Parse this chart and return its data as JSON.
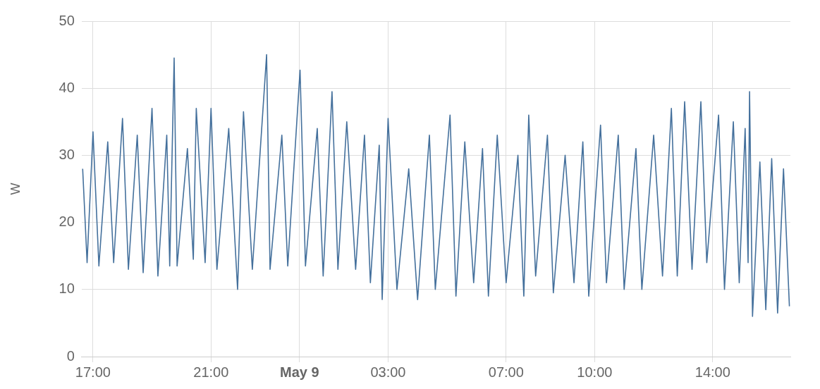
{
  "chart_data": {
    "type": "line",
    "ylabel": "W",
    "xlim": [
      "--05-08T16:37",
      "--05-09T16:38"
    ],
    "xticks": [
      {
        "value": "--05-08T17:00",
        "label": "17:00"
      },
      {
        "value": "--05-08T21:00",
        "label": "21:00"
      },
      {
        "value": "--05-09T00:00",
        "label": "May 9"
      },
      {
        "value": "--05-09T03:00",
        "label": "03:00"
      },
      {
        "value": "--05-09T07:00",
        "label": "07:00"
      },
      {
        "value": "--05-09T10:00",
        "label": "10:00"
      },
      {
        "value": "--05-09T14:00",
        "label": "14:00"
      }
    ],
    "ylim": [
      0,
      50
    ],
    "yticks": [
      0,
      10,
      20,
      30,
      40,
      50
    ],
    "grid": true,
    "x": [
      "--05-08T16:39",
      "--05-08T16:48",
      "--05-08T17:00",
      "--05-08T17:12",
      "--05-08T17:30",
      "--05-08T17:42",
      "--05-08T18:00",
      "--05-08T18:12",
      "--05-08T18:30",
      "--05-08T18:42",
      "--05-08T19:00",
      "--05-08T19:12",
      "--05-08T19:30",
      "--05-08T19:36",
      "--05-08T19:45",
      "--05-08T19:51",
      "--05-08T20:12",
      "--05-08T20:24",
      "--05-08T20:30",
      "--05-08T20:48",
      "--05-08T21:00",
      "--05-08T21:12",
      "--05-08T21:36",
      "--05-08T21:54",
      "--05-08T22:06",
      "--05-08T22:24",
      "--05-08T22:53",
      "--05-08T23:00",
      "--05-08T23:24",
      "--05-08T23:36",
      "--05-09T00:01",
      "--05-09T00:12",
      "--05-09T00:36",
      "--05-09T00:48",
      "--05-09T01:06",
      "--05-09T01:18",
      "--05-09T01:36",
      "--05-09T01:54",
      "--05-09T02:12",
      "--05-09T02:24",
      "--05-09T02:42",
      "--05-09T02:48",
      "--05-09T03:00",
      "--05-09T03:18",
      "--05-09T03:42",
      "--05-09T04:00",
      "--05-09T04:24",
      "--05-09T04:36",
      "--05-09T05:06",
      "--05-09T05:18",
      "--05-09T05:36",
      "--05-09T05:54",
      "--05-09T06:12",
      "--05-09T06:24",
      "--05-09T06:42",
      "--05-09T07:00",
      "--05-09T07:24",
      "--05-09T07:36",
      "--05-09T07:46",
      "--05-09T08:00",
      "--05-09T08:24",
      "--05-09T08:36",
      "--05-09T09:00",
      "--05-09T09:18",
      "--05-09T09:36",
      "--05-09T09:48",
      "--05-09T10:12",
      "--05-09T10:24",
      "--05-09T10:48",
      "--05-09T11:00",
      "--05-09T11:24",
      "--05-09T11:36",
      "--05-09T12:00",
      "--05-09T12:18",
      "--05-09T12:36",
      "--05-09T12:48",
      "--05-09T13:03",
      "--05-09T13:18",
      "--05-09T13:36",
      "--05-09T13:48",
      "--05-09T14:12",
      "--05-09T14:24",
      "--05-09T14:42",
      "--05-09T14:54",
      "--05-09T15:06",
      "--05-09T15:12",
      "--05-09T15:15",
      "--05-09T15:21",
      "--05-09T15:36",
      "--05-09T15:48",
      "--05-09T16:00",
      "--05-09T16:12",
      "--05-09T16:24",
      "--05-09T16:36"
    ],
    "series": [
      {
        "color": "#44709c",
        "values": [
          28,
          14,
          33.5,
          13.5,
          32,
          14,
          35.5,
          13,
          33,
          12.5,
          37,
          12,
          33,
          13.5,
          44.5,
          13.5,
          31,
          14.5,
          37,
          14,
          37,
          13,
          34,
          10,
          36.5,
          13,
          45,
          13,
          33,
          13.5,
          42.7,
          13.5,
          34,
          12,
          39.5,
          13,
          35,
          13,
          33,
          11,
          31.5,
          8.5,
          35.5,
          10,
          28,
          8.5,
          33,
          10,
          36,
          9,
          32,
          11,
          31,
          9,
          33,
          11,
          30,
          9,
          36,
          12,
          33,
          9.5,
          30,
          11,
          32,
          9,
          34.5,
          11,
          33,
          10,
          31,
          10,
          33,
          12,
          37,
          12,
          38,
          13,
          38,
          14,
          36,
          10,
          35,
          11,
          34,
          14,
          39.5,
          6,
          29,
          7,
          29.5,
          6.5,
          28,
          7.5
        ]
      }
    ]
  }
}
